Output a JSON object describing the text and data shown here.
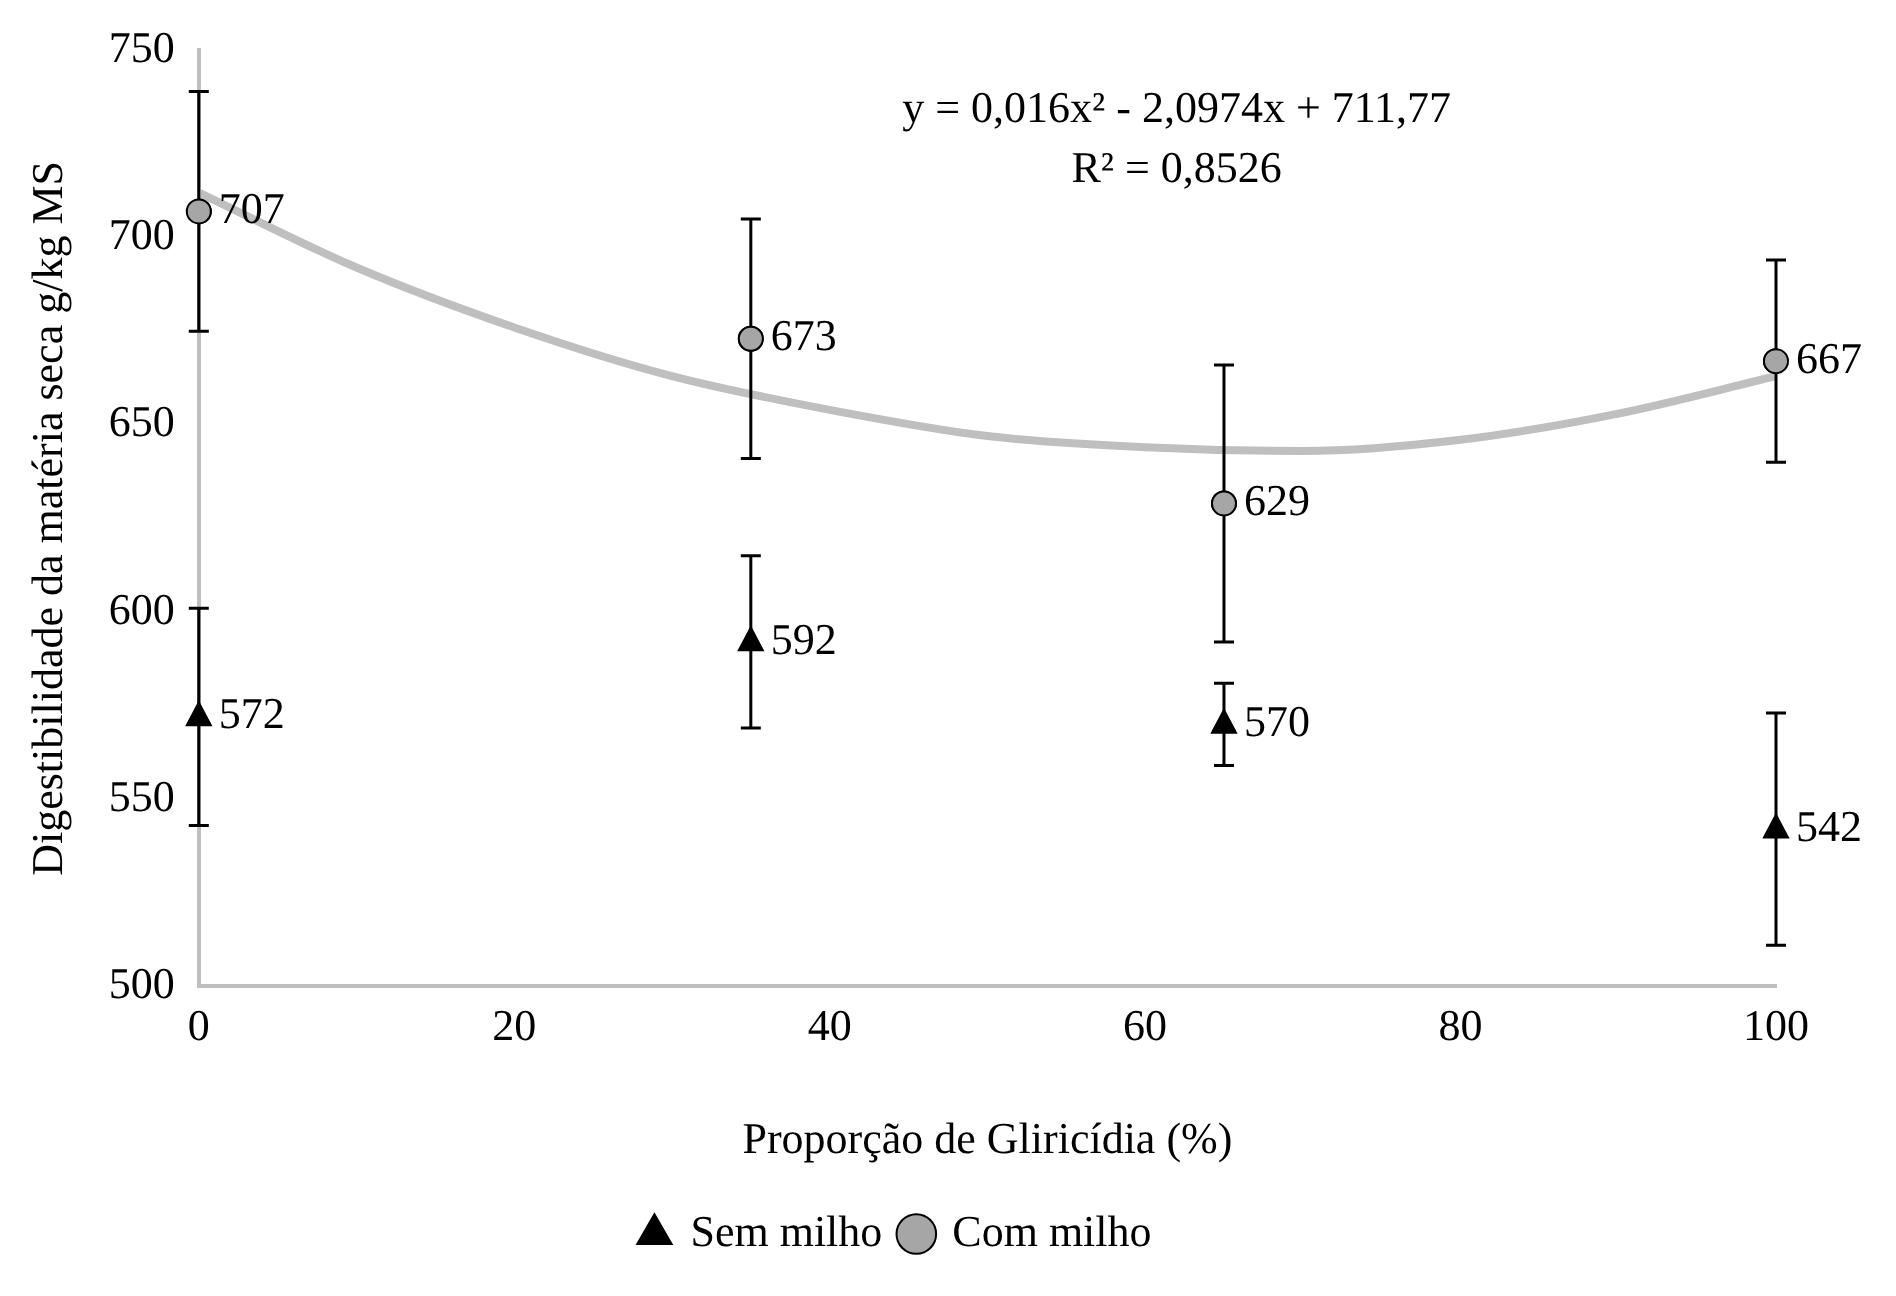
{
  "chart_data": {
    "type": "scatter",
    "xlabel": "Proporção de Gliricídia (%)",
    "ylabel": "Digestibilidade da matéria seca g/kg MS",
    "x": [
      0,
      35,
      65,
      100
    ],
    "series": [
      {
        "name": "Sem milho",
        "color": "#000000",
        "marker": "triangle",
        "values": [
          572,
          592,
          570,
          542
        ],
        "value_labels": [
          "572",
          "592",
          "570",
          "542"
        ],
        "errors": [
          29,
          23,
          11,
          31
        ]
      },
      {
        "name": "Com milho",
        "color": "#a6a6a6",
        "marker": "circle",
        "values": [
          707,
          673,
          629,
          667
        ],
        "value_labels": [
          "707",
          "673",
          "629",
          "667"
        ],
        "errors": [
          32,
          32,
          37,
          27
        ]
      },
      {
        "type": "line",
        "color": "#bfbfbf",
        "marker": "none",
        "x": [
          0,
          10,
          20,
          30,
          40,
          50,
          60,
          70,
          80,
          90,
          100
        ],
        "values": [
          712,
          692,
          676,
          663,
          654,
          647,
          644,
          643,
          646,
          653,
          663
        ]
      }
    ],
    "xlim": [
      0,
      100
    ],
    "xticks": [
      0,
      20,
      40,
      60,
      80,
      100
    ],
    "ylim": [
      500,
      750
    ],
    "yticks": [
      500,
      550,
      600,
      650,
      700,
      750
    ],
    "grid": false,
    "legend": "bottom",
    "annotations": [
      "y = 0,016x² - 2,0974x + 711,77",
      "R² = 0,8526"
    ]
  }
}
